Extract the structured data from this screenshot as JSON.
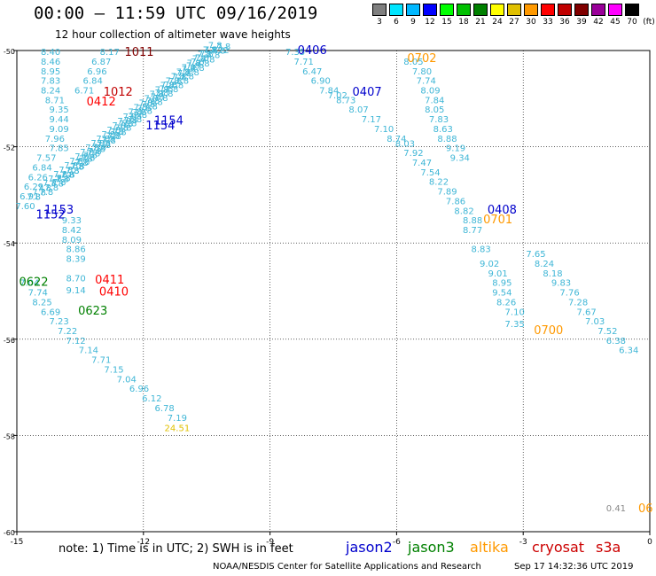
{
  "title": "00:00 — 11:59 UTC 09/16/2019",
  "subtitle": "12 hour collection of altimeter wave heights",
  "scale": {
    "unit": "(ft)",
    "bins": [
      {
        "label": "3",
        "color": "#7f7f7f"
      },
      {
        "label": "6",
        "color": "#00e5ff"
      },
      {
        "label": "9",
        "color": "#00b8ff"
      },
      {
        "label": "12",
        "color": "#0000ff"
      },
      {
        "label": "15",
        "color": "#00ff00"
      },
      {
        "label": "18",
        "color": "#00c000"
      },
      {
        "label": "21",
        "color": "#008000"
      },
      {
        "label": "24",
        "color": "#ffff00"
      },
      {
        "label": "27",
        "color": "#e0c000"
      },
      {
        "label": "30",
        "color": "#ff9900"
      },
      {
        "label": "33",
        "color": "#ff0000"
      },
      {
        "label": "36",
        "color": "#c00000"
      },
      {
        "label": "39",
        "color": "#800000"
      },
      {
        "label": "42",
        "color": "#990099"
      },
      {
        "label": "45",
        "color": "#ff00ff"
      },
      {
        "label": "70",
        "color": "#000000"
      }
    ]
  },
  "note": "note: 1) Time is in UTC; 2) SWH is in feet",
  "legend": [
    {
      "name": "jason2",
      "color": "#0000cc"
    },
    {
      "name": "jason3",
      "color": "#008000"
    },
    {
      "name": "altika",
      "color": "#ff9900"
    },
    {
      "name": "cryosat",
      "color": "#cc0000"
    },
    {
      "name": "s3a",
      "color": "#cc0000"
    }
  ],
  "credit": "NOAA/NESDIS Center for Satellite Applications and Research",
  "generated": "Sep 17 14:32:36 UTC 2019",
  "chart_data": {
    "type": "scatter",
    "title": "12 hour collection of altimeter wave heights",
    "xlim": [
      -15,
      0
    ],
    "ylim": [
      -60,
      -50
    ],
    "x_ticks": [
      "-15",
      "-12",
      "-9",
      "-6",
      "-3",
      "0"
    ],
    "x_tick_values": [
      -15,
      -12,
      -9,
      -6,
      -3,
      0
    ],
    "y_ticks": [
      "-50",
      "-52",
      "-54",
      "-56",
      "-58",
      "-60"
    ],
    "y_tick_values": [
      -50,
      -52,
      -54,
      -56,
      -58,
      -60
    ],
    "grid": true,
    "value_color": "#3fb6d6",
    "track_labels": [
      {
        "text": "1011",
        "x": -12.1,
        "y": -50.02,
        "color": "#800000"
      },
      {
        "text": "1012",
        "x": -12.6,
        "y": -50.85,
        "color": "#c00000"
      },
      {
        "text": "0412",
        "x": -13.0,
        "y": -51.05,
        "color": "#ff0000"
      },
      {
        "text": "1154",
        "x": -11.4,
        "y": -51.45,
        "color": "#0000cc"
      },
      {
        "text": "1154",
        "x": -11.6,
        "y": -51.55,
        "color": "#0000cc"
      },
      {
        "text": "1153",
        "x": -14.0,
        "y": -53.3,
        "color": "#0000cc"
      },
      {
        "text": "1152",
        "x": -14.2,
        "y": -53.4,
        "color": "#0000cc"
      },
      {
        "text": "0406",
        "x": -8.0,
        "y": -49.98,
        "color": "#0000cc"
      },
      {
        "text": "0407",
        "x": -6.7,
        "y": -50.85,
        "color": "#0000cc"
      },
      {
        "text": "0702",
        "x": -5.4,
        "y": -50.15,
        "color": "#ff9900"
      },
      {
        "text": "0408",
        "x": -3.5,
        "y": -53.3,
        "color": "#0000cc"
      },
      {
        "text": "0701",
        "x": -3.6,
        "y": -53.5,
        "color": "#ff9900"
      },
      {
        "text": "0411",
        "x": -12.8,
        "y": -54.75,
        "color": "#ff0000"
      },
      {
        "text": "0410",
        "x": -12.7,
        "y": -55.0,
        "color": "#ff0000"
      },
      {
        "text": "0622",
        "x": -14.6,
        "y": -54.8,
        "color": "#008000"
      },
      {
        "text": "0623",
        "x": -13.2,
        "y": -55.4,
        "color": "#008000"
      },
      {
        "text": "0700",
        "x": -2.4,
        "y": -55.8,
        "color": "#ff9900"
      },
      {
        "text": "06",
        "x": -0.1,
        "y": -59.5,
        "color": "#ff9900"
      }
    ],
    "points": [
      {
        "v": "8.40",
        "x": -14.2,
        "y": -50.02
      },
      {
        "v": "8.17",
        "x": -12.8,
        "y": -50.02
      },
      {
        "v": "8.46",
        "x": -14.2,
        "y": -50.22
      },
      {
        "v": "6.87",
        "x": -13.0,
        "y": -50.22
      },
      {
        "v": "8.95",
        "x": -14.2,
        "y": -50.42
      },
      {
        "v": "6.96",
        "x": -13.1,
        "y": -50.42
      },
      {
        "v": "7.83",
        "x": -14.2,
        "y": -50.62
      },
      {
        "v": "6.84",
        "x": -13.2,
        "y": -50.62
      },
      {
        "v": "8.24",
        "x": -14.2,
        "y": -50.82
      },
      {
        "v": "6.71",
        "x": -13.4,
        "y": -50.82
      },
      {
        "v": "8.71",
        "x": -14.1,
        "y": -51.02
      },
      {
        "v": "9.35",
        "x": -14.0,
        "y": -51.22
      },
      {
        "v": "9.44",
        "x": -14.0,
        "y": -51.42
      },
      {
        "v": "9.09",
        "x": -14.0,
        "y": -51.62
      },
      {
        "v": "7.96",
        "x": -14.1,
        "y": -51.82
      },
      {
        "v": "7.85",
        "x": -14.0,
        "y": -52.02
      },
      {
        "v": "7.57",
        "x": -14.3,
        "y": -52.22
      },
      {
        "v": "6.84",
        "x": -14.4,
        "y": -52.42
      },
      {
        "v": "6.26",
        "x": -14.5,
        "y": -52.62
      },
      {
        "v": "6.29",
        "x": -14.6,
        "y": -52.82
      },
      {
        "v": "6.91",
        "x": -14.7,
        "y": -53.02
      },
      {
        "v": "7.60",
        "x": -14.8,
        "y": -53.22
      },
      {
        "v": "9.33",
        "x": -13.7,
        "y": -53.52
      },
      {
        "v": "8.42",
        "x": -13.7,
        "y": -53.72
      },
      {
        "v": "8.09",
        "x": -13.7,
        "y": -53.92
      },
      {
        "v": "8.86",
        "x": -13.6,
        "y": -54.12
      },
      {
        "v": "8.39",
        "x": -13.6,
        "y": -54.32
      },
      {
        "v": "8.70",
        "x": -13.6,
        "y": -54.72
      },
      {
        "v": "9.14",
        "x": -13.6,
        "y": -54.97
      },
      {
        "v": "7.04",
        "x": -14.7,
        "y": -54.82
      },
      {
        "v": "7.74",
        "x": -14.5,
        "y": -55.02
      },
      {
        "v": "8.25",
        "x": -14.4,
        "y": -55.22
      },
      {
        "v": "6.69",
        "x": -14.2,
        "y": -55.42
      },
      {
        "v": "7.23",
        "x": -14.0,
        "y": -55.62
      },
      {
        "v": "7.22",
        "x": -13.8,
        "y": -55.82
      },
      {
        "v": "7.12",
        "x": -13.6,
        "y": -56.02
      },
      {
        "v": "7.14",
        "x": -13.3,
        "y": -56.22
      },
      {
        "v": "7.71",
        "x": -13.0,
        "y": -56.42
      },
      {
        "v": "7.15",
        "x": -12.7,
        "y": -56.62
      },
      {
        "v": "7.04",
        "x": -12.4,
        "y": -56.82
      },
      {
        "v": "6.96",
        "x": -12.1,
        "y": -57.02
      },
      {
        "v": "6.12",
        "x": -11.8,
        "y": -57.22
      },
      {
        "v": "6.78",
        "x": -11.5,
        "y": -57.42
      },
      {
        "v": "7.19",
        "x": -11.2,
        "y": -57.62
      },
      {
        "v": "24.51",
        "x": -11.2,
        "y": -57.84,
        "color": "#e0c000"
      },
      {
        "v": "7.22",
        "x": -10.2,
        "y": -49.98
      },
      {
        "v": "7.35",
        "x": -8.4,
        "y": -50.02
      },
      {
        "v": "7.71",
        "x": -8.2,
        "y": -50.22
      },
      {
        "v": "6.47",
        "x": -8.0,
        "y": -50.42
      },
      {
        "v": "6.90",
        "x": -7.8,
        "y": -50.62
      },
      {
        "v": "7.84",
        "x": -7.6,
        "y": -50.82
      },
      {
        "v": "7.02",
        "x": -7.4,
        "y": -50.92
      },
      {
        "v": "8.73",
        "x": -7.2,
        "y": -51.02
      },
      {
        "v": "8.07",
        "x": -6.9,
        "y": -51.22
      },
      {
        "v": "7.17",
        "x": -6.6,
        "y": -51.42
      },
      {
        "v": "7.10",
        "x": -6.3,
        "y": -51.62
      },
      {
        "v": "8.74",
        "x": -6.0,
        "y": -51.82
      },
      {
        "v": "8.03",
        "x": -5.8,
        "y": -51.92
      },
      {
        "v": "7.92",
        "x": -5.6,
        "y": -52.12
      },
      {
        "v": "7.47",
        "x": -5.4,
        "y": -52.32
      },
      {
        "v": "7.54",
        "x": -5.2,
        "y": -52.52
      },
      {
        "v": "8.22",
        "x": -5.0,
        "y": -52.72
      },
      {
        "v": "7.89",
        "x": -4.8,
        "y": -52.92
      },
      {
        "v": "7.86",
        "x": -4.6,
        "y": -53.12
      },
      {
        "v": "8.82",
        "x": -4.4,
        "y": -53.32
      },
      {
        "v": "8.88",
        "x": -4.2,
        "y": -53.52
      },
      {
        "v": "8.77",
        "x": -4.2,
        "y": -53.72
      },
      {
        "v": "8.83",
        "x": -4.0,
        "y": -54.12
      },
      {
        "v": "8.05",
        "x": -5.6,
        "y": -50.22
      },
      {
        "v": "7.80",
        "x": -5.4,
        "y": -50.42
      },
      {
        "v": "7.74",
        "x": -5.3,
        "y": -50.62
      },
      {
        "v": "8.09",
        "x": -5.2,
        "y": -50.82
      },
      {
        "v": "7.84",
        "x": -5.1,
        "y": -51.02
      },
      {
        "v": "8.05",
        "x": -5.1,
        "y": -51.22
      },
      {
        "v": "7.83",
        "x": -5.0,
        "y": -51.42
      },
      {
        "v": "8.63",
        "x": -4.9,
        "y": -51.62
      },
      {
        "v": "8.88",
        "x": -4.8,
        "y": -51.82
      },
      {
        "v": "9.19",
        "x": -4.6,
        "y": -52.02
      },
      {
        "v": "9.34",
        "x": -4.5,
        "y": -52.22
      },
      {
        "v": "9.02",
        "x": -3.8,
        "y": -54.42
      },
      {
        "v": "9.01",
        "x": -3.6,
        "y": -54.62
      },
      {
        "v": "8.95",
        "x": -3.5,
        "y": -54.82
      },
      {
        "v": "9.54",
        "x": -3.5,
        "y": -55.02
      },
      {
        "v": "8.26",
        "x": -3.4,
        "y": -55.22
      },
      {
        "v": "7.10",
        "x": -3.2,
        "y": -55.42
      },
      {
        "v": "7.35",
        "x": -3.2,
        "y": -55.67
      },
      {
        "v": "7.65",
        "x": -2.7,
        "y": -54.22
      },
      {
        "v": "8.24",
        "x": -2.5,
        "y": -54.42
      },
      {
        "v": "8.18",
        "x": -2.3,
        "y": -54.62
      },
      {
        "v": "9.83",
        "x": -2.1,
        "y": -54.82
      },
      {
        "v": "7.76",
        "x": -1.9,
        "y": -55.02
      },
      {
        "v": "7.28",
        "x": -1.7,
        "y": -55.22
      },
      {
        "v": "7.67",
        "x": -1.5,
        "y": -55.42
      },
      {
        "v": "7.03",
        "x": -1.3,
        "y": -55.62
      },
      {
        "v": "7.52",
        "x": -1.0,
        "y": -55.82
      },
      {
        "v": "6.38",
        "x": -0.8,
        "y": -56.02
      },
      {
        "v": "6.34",
        "x": -0.5,
        "y": -56.22
      },
      {
        "v": "0.41",
        "x": -0.8,
        "y": -59.5,
        "color": "#888888"
      }
    ]
  }
}
